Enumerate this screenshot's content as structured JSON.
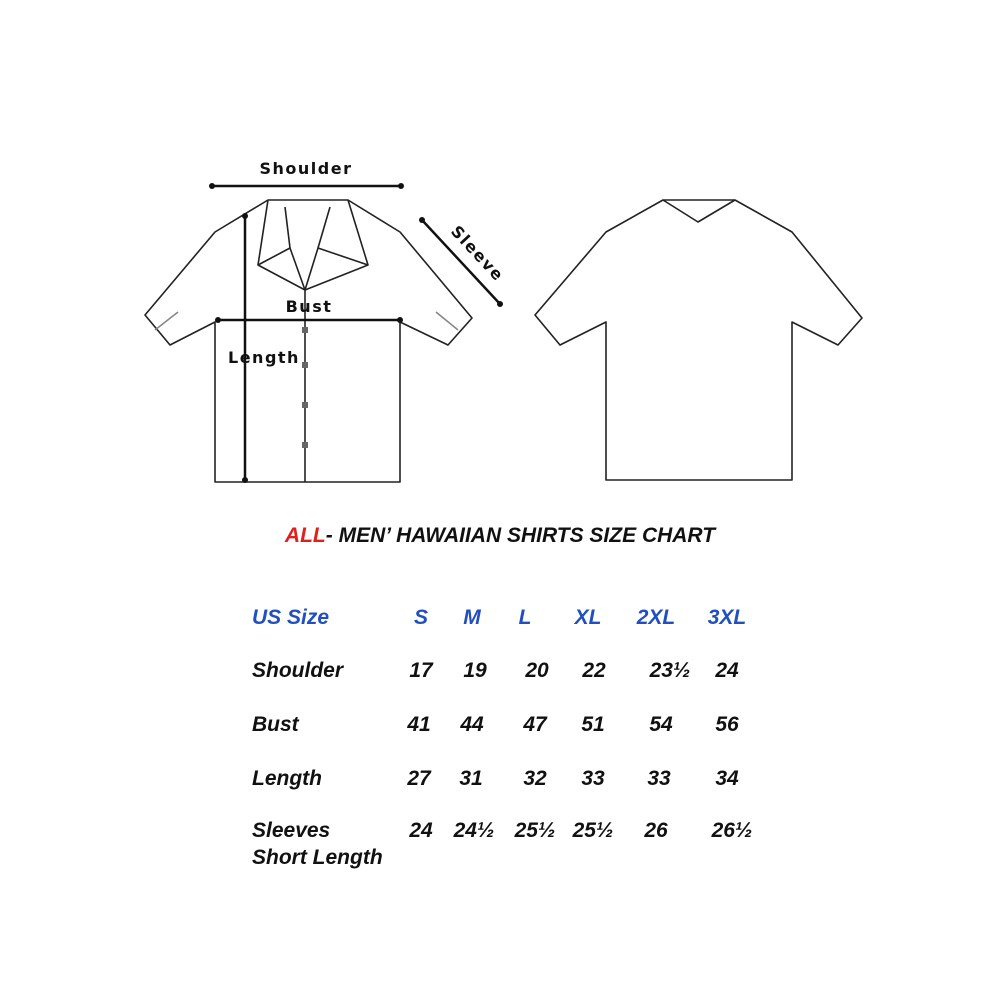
{
  "diagram": {
    "labels": {
      "shoulder": "Shoulder",
      "sleeve": "Sleeve",
      "bust": "Bust",
      "length": "Length"
    }
  },
  "title": {
    "highlight": "ALL",
    "rest": "- MEN’ HAWAIIAN SHIRTS SIZE CHART",
    "highlight_color": "#e0201b"
  },
  "table": {
    "header_label": "US Size",
    "header_color": "#1f4fc0",
    "sizes": [
      "S",
      "M",
      "L",
      "XL",
      "2XL",
      "3XL"
    ],
    "rows": [
      {
        "label": "Shoulder",
        "values": [
          "17",
          "19",
          "20",
          "22",
          "23½",
          "24"
        ]
      },
      {
        "label": "Bust",
        "values": [
          "41",
          "44",
          "47",
          "51",
          "54",
          "56"
        ]
      },
      {
        "label": "Length",
        "values": [
          "27",
          "31",
          "32",
          "33",
          "33",
          "34"
        ]
      },
      {
        "label": "Sleeves\nShort Length",
        "line1": "Sleeves",
        "line2": "Short Length",
        "values": [
          "24",
          "24½",
          "25½",
          "25½",
          "26",
          "26½"
        ]
      }
    ]
  }
}
